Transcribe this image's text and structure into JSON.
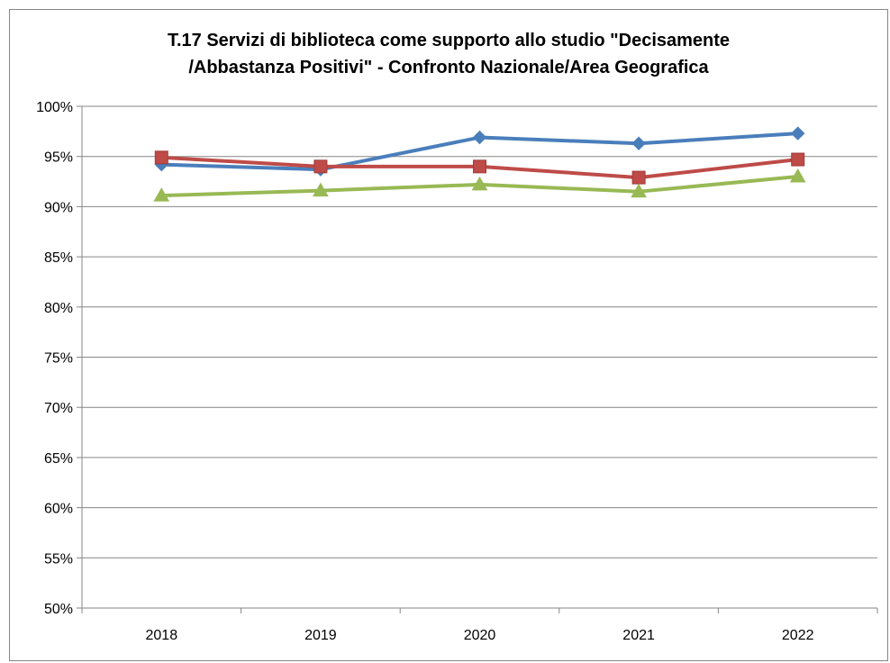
{
  "chart_data": {
    "type": "line",
    "title_line1": "T.17 Servizi di biblioteca come supporto allo studio \"Decisamente",
    "title_line2": "/Abbastanza Positivi\" - Confronto Nazionale/Area Geografica",
    "categories": [
      "2018",
      "2019",
      "2020",
      "2021",
      "2022"
    ],
    "y_ticks": [
      "50%",
      "55%",
      "60%",
      "65%",
      "70%",
      "75%",
      "80%",
      "85%",
      "90%",
      "95%",
      "100%"
    ],
    "ylim": [
      50,
      100
    ],
    "y_step": 5,
    "grid": true,
    "legend": "none",
    "series": [
      {
        "values": [
          94.2,
          93.7,
          96.9,
          96.3,
          97.3
        ],
        "color": "#4a7ebb",
        "marker": "diamond"
      },
      {
        "values": [
          94.9,
          94.0,
          94.0,
          92.9,
          94.7
        ],
        "color": "#be4b48",
        "marker": "square"
      },
      {
        "values": [
          91.1,
          91.6,
          92.2,
          91.5,
          93.0
        ],
        "color": "#98b954",
        "marker": "triangle"
      }
    ]
  }
}
